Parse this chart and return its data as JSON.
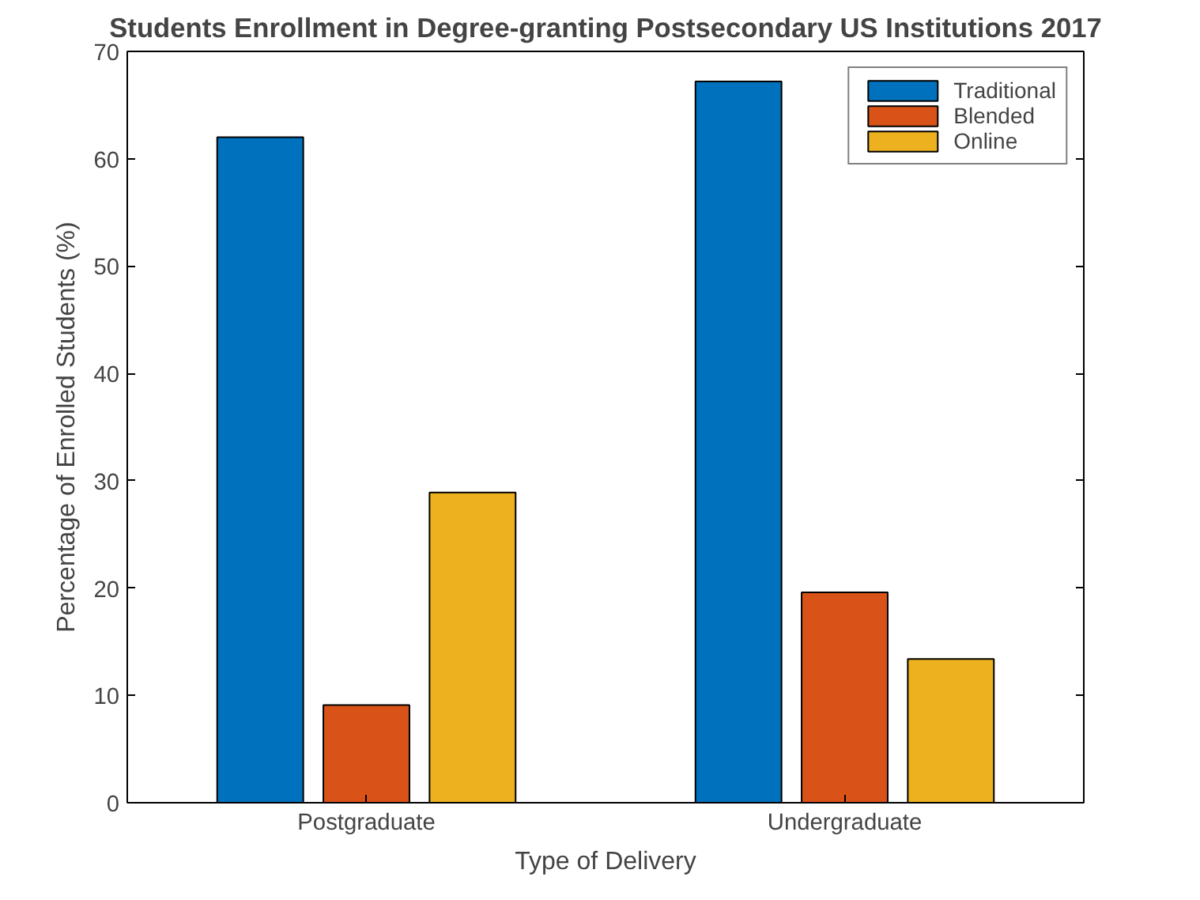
{
  "chart_data": {
    "type": "bar",
    "title": "Students Enrollment in Degree-granting Postsecondary US Institutions 2017",
    "xlabel": "Type of Delivery",
    "ylabel": "Percentage of Enrolled Students (%)",
    "categories": [
      "Postgraduate",
      "Undergraduate"
    ],
    "series": [
      {
        "name": "Traditional",
        "color": "#0072bd",
        "values": [
          62,
          67.2
        ]
      },
      {
        "name": "Blended",
        "color": "#d95319",
        "values": [
          9.1,
          19.6
        ]
      },
      {
        "name": "Online",
        "color": "#edb120",
        "values": [
          28.9,
          13.4
        ]
      }
    ],
    "ylim": [
      0,
      70
    ],
    "yticks": [
      0,
      10,
      20,
      30,
      40,
      50,
      60,
      70
    ],
    "grid": false,
    "legend": "top right"
  }
}
